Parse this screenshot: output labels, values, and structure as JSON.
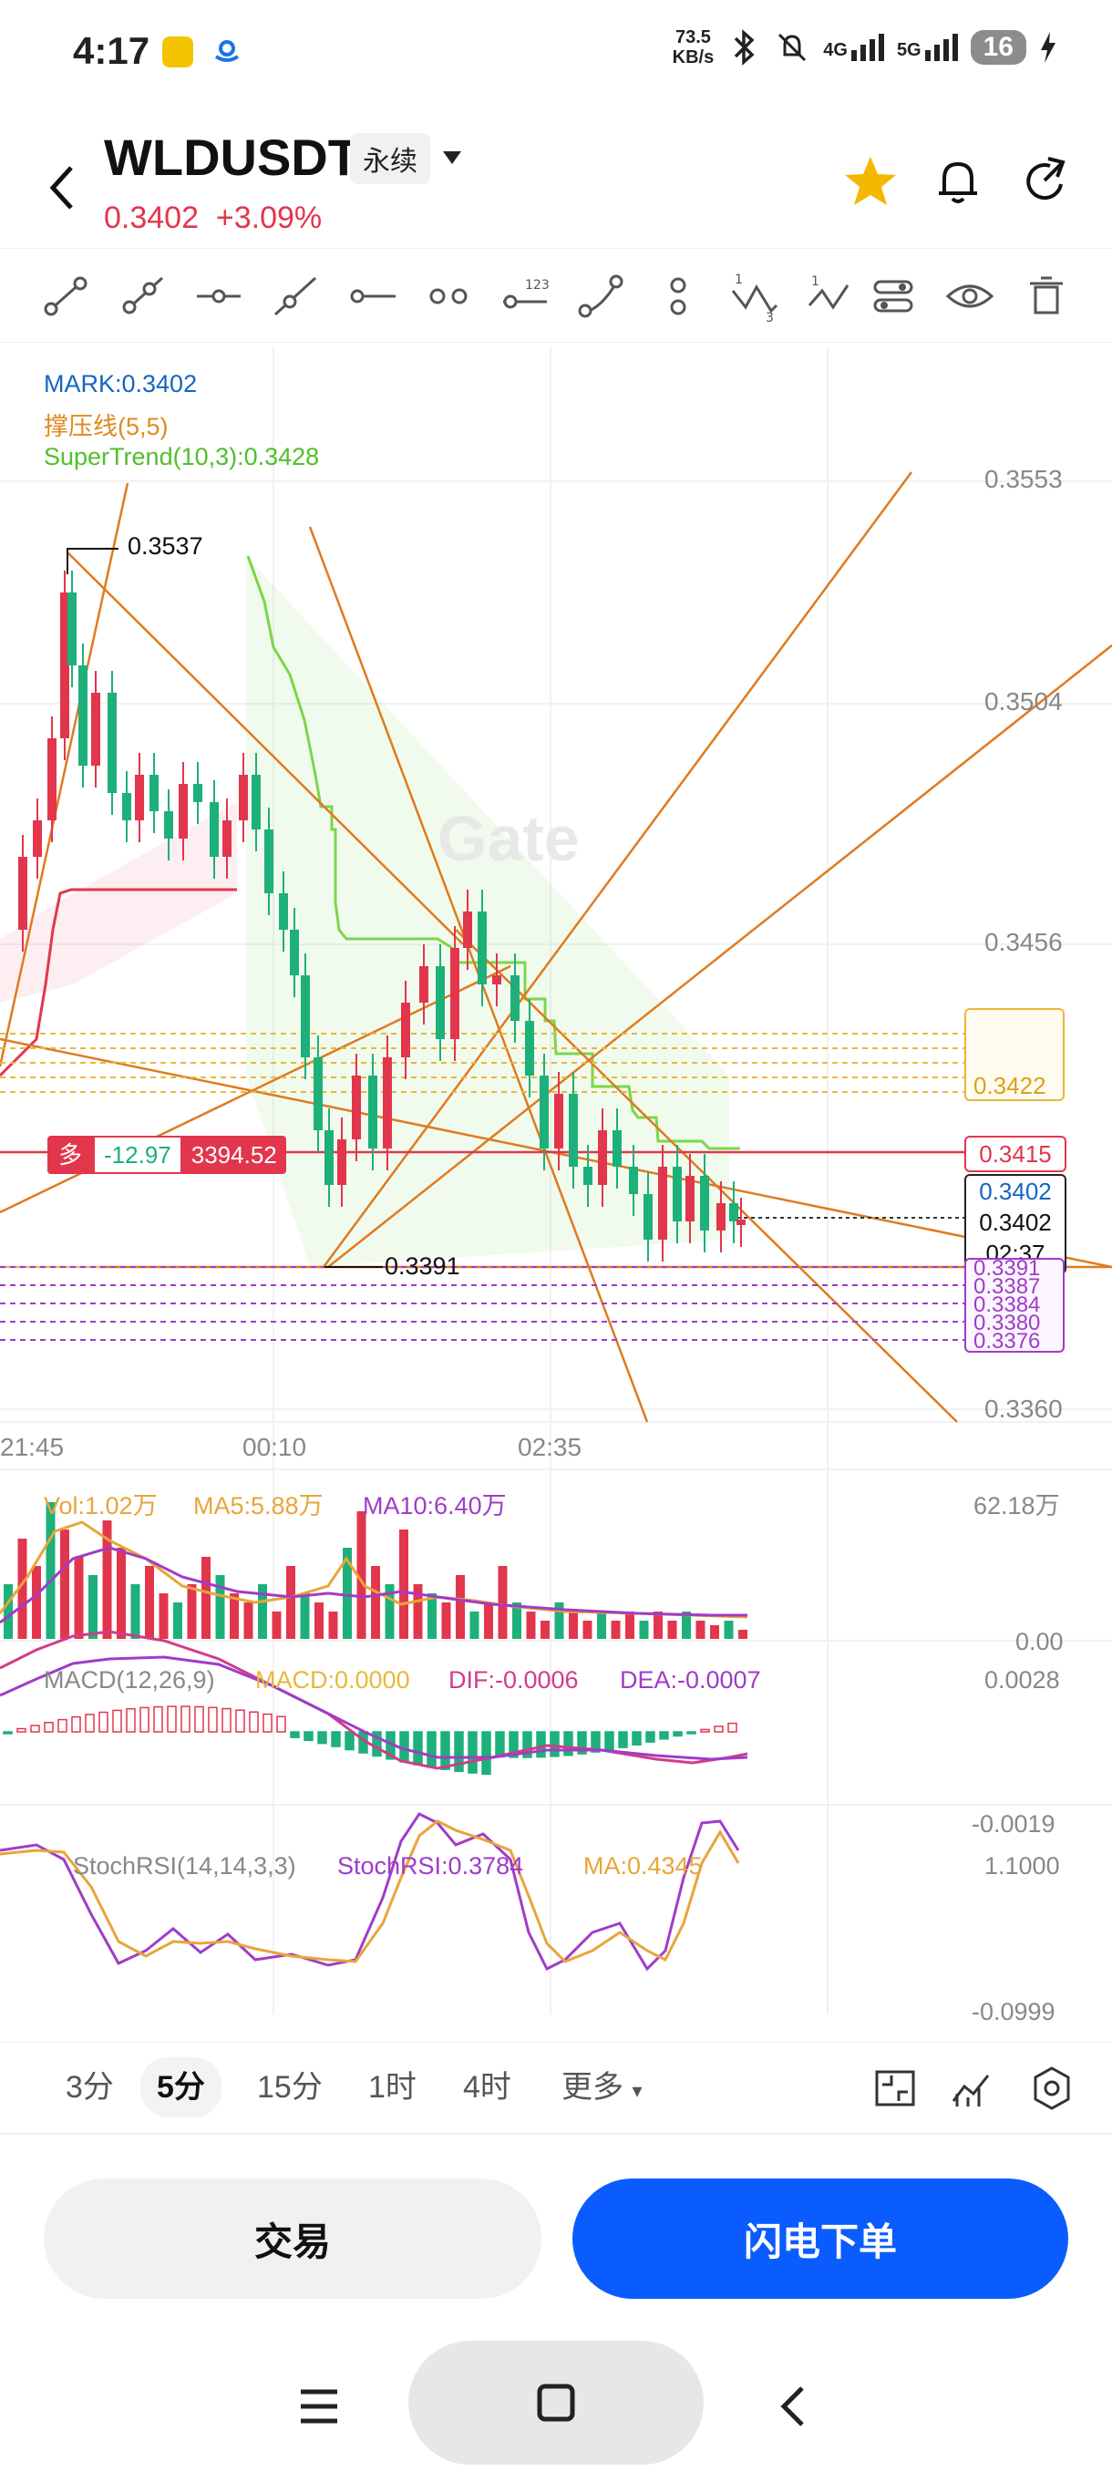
{
  "status": {
    "time": "4:17",
    "net_speed_value": "73.5",
    "net_speed_unit": "KB/s",
    "sig1": "4G",
    "sig2": "5G",
    "battery": "16"
  },
  "header": {
    "pair": "WLDUSDT",
    "contract_type": "永续",
    "last_price": "0.3402",
    "change_pct": "+3.09%"
  },
  "legend": {
    "mark": "MARK:0.3402",
    "sr": "撑压线(5,5)",
    "supertrend": "SuperTrend(10,3):0.3428"
  },
  "price_axis": [
    "0.3553",
    "0.3504",
    "0.3456",
    "0.3360"
  ],
  "time_axis": [
    "21:45",
    "00:10",
    "02:35"
  ],
  "labels": {
    "high": "0.3537",
    "low": "0.3391",
    "yellow_top": "0.3422",
    "red_line": "0.3415",
    "mark_price": "0.3402",
    "last_price": "0.3402",
    "countdown": "02:37",
    "purple_top": "0.3391",
    "purple_2": "0.3387",
    "purple_3": "0.3384",
    "purple_4": "0.3380",
    "purple_5": "0.3376"
  },
  "position": {
    "side": "多",
    "pnl": "-12.97",
    "value": "3394.52"
  },
  "volume": {
    "vol": "Vol:1.02万",
    "ma5": "MA5:5.88万",
    "ma10": "MA10:6.40万",
    "max": "62.18万",
    "min": "0.00"
  },
  "macd": {
    "title": "MACD(12,26,9)",
    "macd": "MACD:0.0000",
    "dif": "DIF:-0.0006",
    "dea": "DEA:-0.0007",
    "max": "0.0028",
    "min": "-0.0019"
  },
  "stochrsi": {
    "title": "StochRSI(14,14,3,3)",
    "value": "StochRSI:0.3784",
    "ma": "MA:0.4345",
    "max": "1.1000",
    "min": "-0.0999"
  },
  "timeframes": [
    "3分",
    "5分",
    "15分",
    "1时",
    "4时",
    "更多"
  ],
  "buttons": {
    "trade": "交易",
    "flash": "闪电下单"
  },
  "colors": {
    "up": "#e2364d",
    "down": "#1db07a",
    "accent": "#0a5cff",
    "supertrend": "#7ad64a",
    "trendline": "#e07a1f",
    "purple": "#a03cc8",
    "yellow": "#e8b83a",
    "star": "#f5b800"
  }
}
